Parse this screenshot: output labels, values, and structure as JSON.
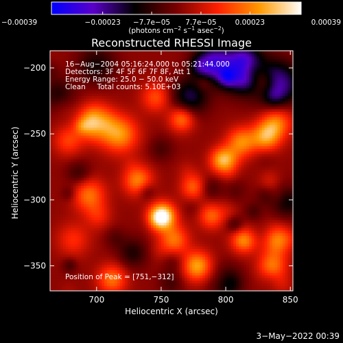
{
  "chart_data": {
    "type": "heatmap",
    "title": "Reconstructed RHESSI Image",
    "xlabel": "Heliocentric X (arcsec)",
    "ylabel": "Heliocentric Y (arcsec)",
    "xlim": [
      664,
      852
    ],
    "ylim": [
      -369,
      -187
    ],
    "x_ticks": [
      700,
      750,
      800,
      850
    ],
    "y_ticks": [
      -350,
      -300,
      -250,
      -200
    ],
    "x_tick_labels": [
      "700",
      "750",
      "800",
      "850"
    ],
    "y_tick_labels": [
      "−350",
      "−300",
      "−250",
      "−200"
    ],
    "colorbar": {
      "min": -0.00039,
      "max": 0.00039,
      "ticks": [
        -0.00039,
        -0.00023,
        -7.7e-05,
        7.7e-05,
        0.00023,
        0.00039
      ],
      "tick_labels": [
        "−0.00039",
        "−0.00023",
        "−7.7e−05",
        "7.7e−05",
        "0.00023",
        "0.00039"
      ],
      "colors": [
        "#0000ff",
        "#5a00c8",
        "#000000",
        "#780000",
        "#ff2000",
        "#ff9a00",
        "#ffffff"
      ],
      "unit_label": "(photons cm",
      "unit_sup1": "−2",
      "unit_mid": " s",
      "unit_sup2": "−1",
      "unit_mid2": " asec",
      "unit_sup3": "−2",
      "unit_end": ")"
    },
    "annotations": [
      "16−Aug−2004 05:16:24.000 to 05:21:44.000",
      "Detectors: 3F 4F 5F 6F 7F 8F, Att 1",
      "Energy Range: 25.0 − 50.0 keV",
      "Clean     Total counts: 5.10E+03"
    ],
    "peak_label": "Position of Peak = [751,−312]",
    "peak": [
      751,
      -312
    ],
    "emission_blobs": [
      {
        "x": 751,
        "y": -312,
        "v": 1.0,
        "r": 7
      },
      {
        "x": 699,
        "y": -241,
        "v": 0.85,
        "r": 9
      },
      {
        "x": 718,
        "y": -250,
        "v": 0.6,
        "r": 10
      },
      {
        "x": 766,
        "y": -238,
        "v": 0.55,
        "r": 7
      },
      {
        "x": 798,
        "y": -270,
        "v": 0.75,
        "r": 7
      },
      {
        "x": 812,
        "y": -256,
        "v": 0.55,
        "r": 8
      },
      {
        "x": 831,
        "y": -252,
        "v": 0.6,
        "r": 8
      },
      {
        "x": 840,
        "y": -240,
        "v": 0.45,
        "r": 9
      },
      {
        "x": 814,
        "y": -330,
        "v": 0.6,
        "r": 7
      },
      {
        "x": 840,
        "y": -330,
        "v": 0.55,
        "r": 8
      },
      {
        "x": 778,
        "y": -350,
        "v": 0.65,
        "r": 8
      },
      {
        "x": 836,
        "y": -350,
        "v": 0.5,
        "r": 8
      },
      {
        "x": 712,
        "y": -360,
        "v": 0.5,
        "r": 8
      },
      {
        "x": 694,
        "y": -296,
        "v": 0.5,
        "r": 9
      },
      {
        "x": 732,
        "y": -285,
        "v": 0.55,
        "r": 8
      },
      {
        "x": 775,
        "y": -290,
        "v": 0.45,
        "r": 7
      },
      {
        "x": 760,
        "y": -330,
        "v": 0.5,
        "r": 8
      },
      {
        "x": 746,
        "y": -222,
        "v": 0.4,
        "r": 8
      },
      {
        "x": 789,
        "y": -312,
        "v": 0.45,
        "r": 7
      },
      {
        "x": 678,
        "y": -255,
        "v": 0.35,
        "r": 8
      },
      {
        "x": 682,
        "y": -330,
        "v": 0.3,
        "r": 9
      },
      {
        "x": 812,
        "y": -200,
        "v": -0.75,
        "r": 12
      },
      {
        "x": 840,
        "y": -212,
        "v": -0.7,
        "r": 12
      },
      {
        "x": 790,
        "y": -195,
        "v": -0.6,
        "r": 10
      },
      {
        "x": 772,
        "y": -222,
        "v": -0.5,
        "r": 10
      },
      {
        "x": 700,
        "y": -197,
        "v": -0.35,
        "r": 10
      },
      {
        "x": 848,
        "y": -300,
        "v": -0.4,
        "r": 9
      },
      {
        "x": 670,
        "y": -220,
        "v": -0.3,
        "r": 9
      },
      {
        "x": 800,
        "y": -362,
        "v": -0.35,
        "r": 9
      },
      {
        "x": 728,
        "y": -340,
        "v": -0.3,
        "r": 8
      }
    ]
  },
  "footer": {
    "timestamp": "3−May−2022 00:39"
  }
}
